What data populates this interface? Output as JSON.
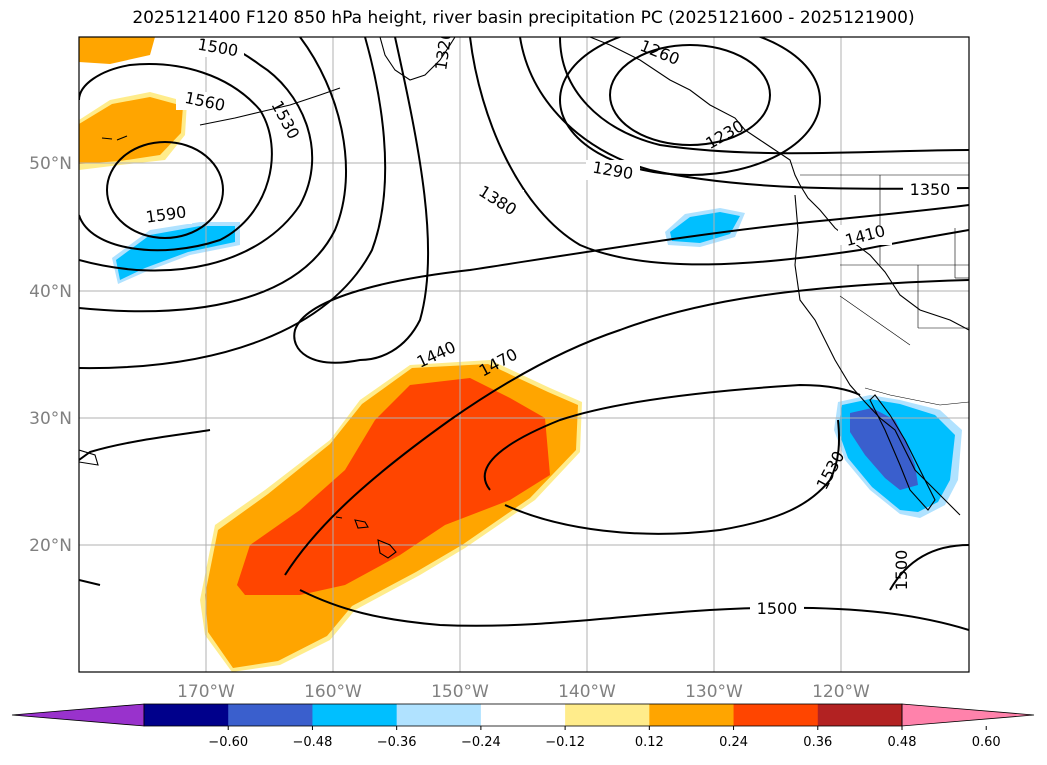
{
  "title": "2025121400 F120 850 hPa height, river basin precipitation PC (2025121600 - 2025121900)",
  "lat_labels": [
    "50°N",
    "40°N",
    "30°N",
    "20°N"
  ],
  "lon_labels": [
    "170°W",
    "160°W",
    "150°W",
    "140°W",
    "130°W",
    "120°W"
  ],
  "contour_labels": [
    "1500",
    "1560",
    "1530",
    "1590",
    "1320",
    "1260",
    "1230",
    "1290",
    "1380",
    "1350",
    "1410",
    "1440",
    "1470",
    "1530",
    "1500",
    "1500"
  ],
  "colorbar": {
    "ticks": [
      "−0.60",
      "−0.48",
      "−0.36",
      "−0.24",
      "−0.12",
      "0.12",
      "0.24",
      "0.36",
      "0.48",
      "0.60"
    ],
    "colors": [
      "#9932cc",
      "#00008b",
      "#3a5fcd",
      "#00bfff",
      "#b0e2ff",
      "#ffffff",
      "#ffec8b",
      "#ffa500",
      "#ff4500",
      "#b22222",
      "#ff82ab"
    ]
  },
  "shading_colors": {
    "pos_light": "#ffec8b",
    "pos_mid": "#ffa500",
    "pos_strong": "#ff4500",
    "neg_light": "#b0e2ff",
    "neg_mid": "#00bfff",
    "neg_strong": "#3a5fcd"
  }
}
